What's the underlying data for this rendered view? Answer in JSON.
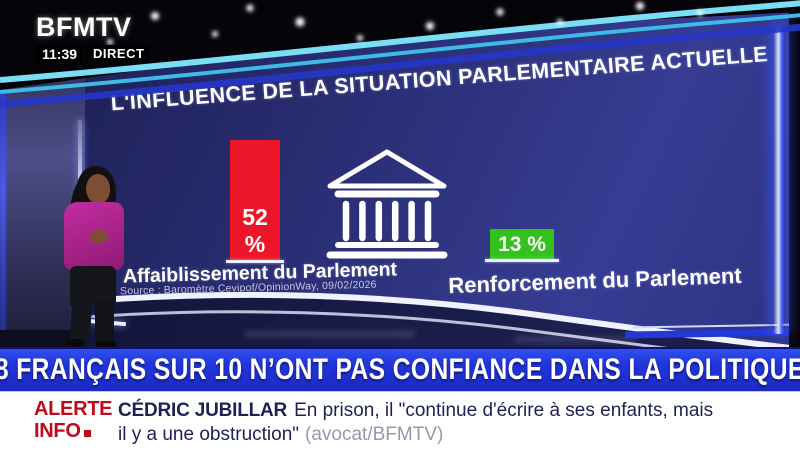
{
  "channel": {
    "logo": "BFMTV",
    "time": "11:39",
    "live_label": "DIRECT"
  },
  "chart_data": {
    "type": "bar",
    "title": "L'INFLUENCE DE LA SITUATION PARLEMENTAIRE ACTUELLE",
    "categories": [
      "Affaiblissement du Parlement",
      "Renforcement du Parlement"
    ],
    "values": [
      52,
      13
    ],
    "unit": "%",
    "value_labels": [
      "52 %",
      "13 %"
    ],
    "bar_colors": [
      "#ed1528",
      "#35c11d"
    ],
    "ylim": [
      0,
      100
    ],
    "grid": "off",
    "center_icon": "parliament-building-icon",
    "source": "Source : Baromètre Cevipof/OpinionWay, 09/02/2026"
  },
  "headline": "8 FRANÇAIS SUR 10 N’ONT PAS CONFIANCE DANS LA POLITIQUE",
  "ticker": {
    "alert_line1": "ALERTE",
    "alert_line2": "INFO",
    "subject": "CÉDRIC JUBILLAR",
    "text_line1": "En prison, il \"continue d'écrire à ses enfants, mais",
    "text_line2": "il y a une obstruction\"",
    "attribution": "(avocat/BFMTV)"
  },
  "colors": {
    "banner_blue": "#2236dc",
    "alert_red": "#c00a1c",
    "bar_red": "#ed1528",
    "bar_green": "#35c11d",
    "screen_navy": "#2a2e74"
  }
}
